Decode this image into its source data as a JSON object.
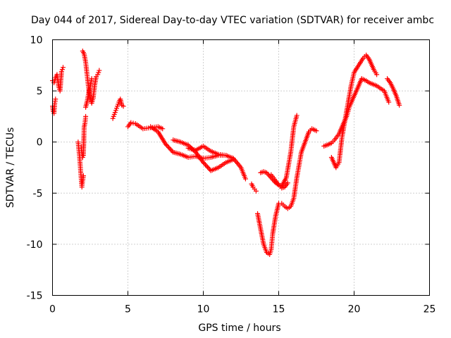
{
  "chart_data": {
    "type": "scatter",
    "title": "Day 044 of 2017, Sidereal Day-to-day VTEC variation (SDTVAR) for receiver ambc",
    "xlabel": "GPS time / hours",
    "ylabel": "SDTVAR / TECUs",
    "xlim": [
      0,
      25
    ],
    "ylim": [
      -15,
      10
    ],
    "xticks": [
      0,
      5,
      10,
      15,
      20,
      25
    ],
    "yticks": [
      10,
      5,
      0,
      -5,
      -10,
      -15
    ],
    "x_tick_labels": [
      "0",
      "5",
      "10",
      "15",
      "20",
      "25"
    ],
    "y_tick_labels": [
      "10",
      "5",
      "0",
      "-5",
      "-10",
      "-15"
    ],
    "grid": true,
    "marker": "plus",
    "color": "#ff0000",
    "series": [
      {
        "name": "s1",
        "x": [
          0.0,
          0.1,
          0.2,
          0.3,
          0.4,
          0.5,
          0.6,
          0.7
        ],
        "y": [
          6.0,
          5.8,
          6.3,
          6.6,
          5.5,
          5.0,
          6.9,
          7.3
        ]
      },
      {
        "name": "s2",
        "x": [
          0.0,
          0.05,
          0.1,
          0.15,
          0.2
        ],
        "y": [
          3.5,
          3.0,
          2.8,
          3.8,
          4.2
        ]
      },
      {
        "name": "s3",
        "x": [
          1.7,
          1.8,
          1.85,
          1.9,
          1.95,
          2.0,
          2.05
        ],
        "y": [
          0.0,
          -1.5,
          -2.5,
          -3.5,
          -4.4,
          -3.8,
          -3.3
        ]
      },
      {
        "name": "s4",
        "x": [
          1.9,
          2.0,
          2.05,
          2.1,
          2.15,
          2.2
        ],
        "y": [
          -0.5,
          -1.5,
          -1.3,
          1.5,
          1.8,
          2.5
        ]
      },
      {
        "name": "s5",
        "x": [
          2.0,
          2.1,
          2.2,
          2.3,
          2.4,
          2.5,
          2.6,
          2.7,
          2.8,
          2.9,
          3.0,
          3.1
        ],
        "y": [
          8.9,
          8.6,
          7.8,
          6.5,
          5.2,
          4.4,
          3.8,
          4.3,
          5.6,
          6.4,
          6.6,
          7.0
        ]
      },
      {
        "name": "s6",
        "x": [
          2.2,
          2.3,
          2.4,
          2.5,
          2.6
        ],
        "y": [
          3.4,
          4.0,
          4.8,
          5.4,
          6.2
        ]
      },
      {
        "name": "s7",
        "x": [
          4.0,
          4.1,
          4.2,
          4.3,
          4.4,
          4.5,
          4.6,
          4.7
        ],
        "y": [
          2.3,
          2.7,
          3.1,
          3.5,
          3.9,
          4.2,
          3.6,
          3.5
        ]
      },
      {
        "name": "s8",
        "x": [
          5.0,
          5.2,
          5.5,
          5.8,
          6.0,
          6.5,
          7.0,
          7.3
        ],
        "y": [
          1.5,
          1.9,
          1.8,
          1.5,
          1.3,
          1.4,
          1.5,
          1.3
        ]
      },
      {
        "name": "s9",
        "x": [
          6.5,
          7.0,
          7.5,
          8.0,
          8.5,
          9.0,
          9.5,
          10.0,
          10.5,
          11.0,
          11.5,
          12.0,
          12.5,
          12.8
        ],
        "y": [
          1.5,
          1.0,
          -0.2,
          -1.0,
          -1.2,
          -1.5,
          -1.4,
          -1.6,
          -1.5,
          -1.3,
          -1.3,
          -1.6,
          -2.5,
          -3.6
        ]
      },
      {
        "name": "s10",
        "x": [
          8.0,
          8.5,
          9.0,
          9.5,
          10.0,
          10.5,
          11.0,
          11.5,
          12.0
        ],
        "y": [
          0.2,
          0.0,
          -0.3,
          -1.0,
          -2.0,
          -2.8,
          -2.5,
          -2.0,
          -1.7
        ]
      },
      {
        "name": "s11",
        "x": [
          9.0,
          9.5,
          10.0,
          10.5,
          11.0,
          11.5
        ],
        "y": [
          -0.6,
          -0.8,
          -0.4,
          -0.9,
          -1.2,
          -1.3
        ]
      },
      {
        "name": "s12",
        "x": [
          13.2,
          13.3,
          13.4,
          13.5
        ],
        "y": [
          -4.1,
          -4.4,
          -4.6,
          -4.8
        ]
      },
      {
        "name": "s13",
        "x": [
          13.6,
          13.8,
          14.0,
          14.2,
          14.4,
          14.5,
          14.6,
          14.8,
          15.0,
          15.2,
          15.4,
          15.6,
          15.8,
          16.0,
          16.2,
          16.5,
          17.0,
          17.2,
          17.5
        ],
        "y": [
          -7.0,
          -8.5,
          -10.0,
          -10.8,
          -11.0,
          -10.5,
          -9.0,
          -7.2,
          -6.0,
          -6.0,
          -6.3,
          -6.5,
          -6.3,
          -5.5,
          -3.5,
          -1.0,
          1.0,
          1.3,
          1.1
        ]
      },
      {
        "name": "s14",
        "x": [
          13.8,
          14.0,
          14.2,
          14.5,
          14.8,
          15.0,
          15.2,
          15.5,
          15.8,
          16.0,
          16.2
        ],
        "y": [
          -3.0,
          -2.9,
          -3.0,
          -3.5,
          -4.0,
          -4.2,
          -4.3,
          -3.5,
          -1.0,
          1.5,
          2.6
        ]
      },
      {
        "name": "s15",
        "x": [
          14.5,
          14.8,
          15.0,
          15.2,
          15.4,
          15.6
        ],
        "y": [
          -3.2,
          -3.8,
          -4.2,
          -4.5,
          -4.4,
          -4.0
        ]
      },
      {
        "name": "s16",
        "x": [
          18.0,
          18.2,
          18.5,
          18.7,
          19.0,
          19.2,
          19.5,
          19.7,
          20.0,
          20.3,
          20.5,
          20.8,
          21.0,
          21.5,
          22.0,
          22.3
        ],
        "y": [
          -0.4,
          -0.3,
          -0.1,
          0.2,
          0.8,
          1.5,
          2.5,
          3.5,
          4.5,
          5.5,
          6.2,
          6.0,
          5.8,
          5.5,
          5.0,
          3.9
        ]
      },
      {
        "name": "s17",
        "x": [
          18.5,
          18.8,
          19.0,
          19.2,
          19.5,
          19.8,
          20.0,
          20.3,
          20.6,
          20.8,
          21.0,
          21.3,
          21.5
        ],
        "y": [
          -1.5,
          -2.5,
          -2.0,
          0.5,
          3.0,
          5.5,
          6.8,
          7.5,
          8.2,
          8.5,
          8.1,
          7.1,
          6.6
        ]
      },
      {
        "name": "s18",
        "x": [
          22.2,
          22.4,
          22.6,
          22.8,
          23.0
        ],
        "y": [
          6.2,
          5.8,
          5.2,
          4.5,
          3.6
        ]
      }
    ]
  }
}
